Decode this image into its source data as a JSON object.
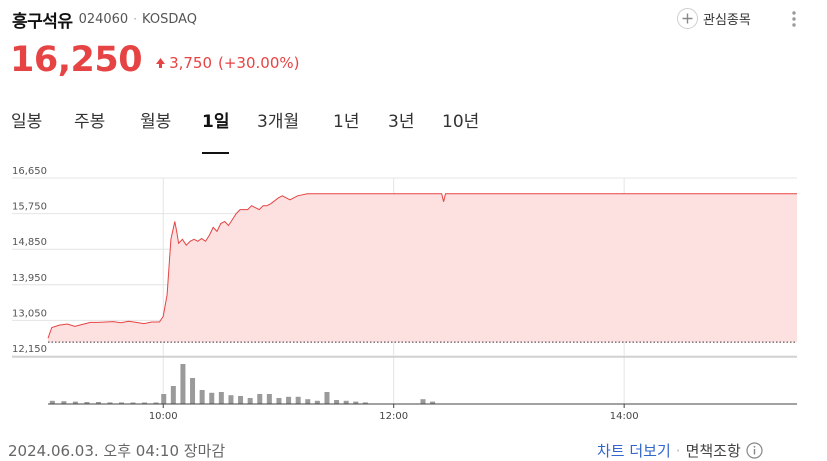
{
  "stock": {
    "name": "흥구석유",
    "code": "024060",
    "separator": "·",
    "market": "KOSDAQ"
  },
  "watchlist": {
    "label": "관심종목",
    "icon": "plus-icon"
  },
  "more_menu": {
    "icon": "more-vertical-icon"
  },
  "quote": {
    "price": "16,250",
    "change": "3,750",
    "change_pct": "(+30.00%)",
    "direction_icon": "triangle-up-icon",
    "color_up": "#e64444"
  },
  "tabs": [
    {
      "label": "일봉",
      "active": false
    },
    {
      "label": "주봉",
      "active": false
    },
    {
      "label": "월봉",
      "active": false
    },
    {
      "label": "1일",
      "active": true
    },
    {
      "label": "3개월",
      "active": false
    },
    {
      "label": "1년",
      "active": false
    },
    {
      "label": "3년",
      "active": false
    },
    {
      "label": "10년",
      "active": false
    }
  ],
  "chart_data": {
    "type": "area",
    "y_tick_labels": [
      "16,650",
      "15,750",
      "14,850",
      "13,950",
      "13,050",
      "12,150"
    ],
    "y_ticks": [
      16650,
      15750,
      14850,
      13950,
      13050,
      12150
    ],
    "ylim": [
      12150,
      16650
    ],
    "x_tick_labels": [
      "10:00",
      "12:00",
      "14:00"
    ],
    "x_ticks_min": [
      600,
      720,
      840
    ],
    "xlim_min": [
      540,
      930
    ],
    "grid": true,
    "reference_line": {
      "value": 12500,
      "style": "dotted"
    },
    "line_color": "#e64444",
    "fill_color": "#fde0e0",
    "price_series": [
      [
        540,
        12600
      ],
      [
        542,
        12870
      ],
      [
        546,
        12930
      ],
      [
        550,
        12960
      ],
      [
        554,
        12900
      ],
      [
        558,
        12950
      ],
      [
        562,
        13000
      ],
      [
        566,
        13000
      ],
      [
        570,
        13010
      ],
      [
        574,
        13020
      ],
      [
        578,
        12990
      ],
      [
        582,
        13030
      ],
      [
        586,
        13000
      ],
      [
        590,
        12970
      ],
      [
        594,
        13010
      ],
      [
        598,
        13010
      ],
      [
        600,
        13150
      ],
      [
        602,
        13700
      ],
      [
        604,
        15100
      ],
      [
        606,
        15550
      ],
      [
        607,
        15300
      ],
      [
        608,
        15000
      ],
      [
        610,
        15100
      ],
      [
        612,
        14950
      ],
      [
        614,
        15050
      ],
      [
        616,
        15100
      ],
      [
        618,
        15050
      ],
      [
        620,
        15120
      ],
      [
        622,
        15050
      ],
      [
        624,
        15200
      ],
      [
        626,
        15400
      ],
      [
        628,
        15300
      ],
      [
        630,
        15500
      ],
      [
        632,
        15550
      ],
      [
        634,
        15450
      ],
      [
        636,
        15600
      ],
      [
        638,
        15750
      ],
      [
        640,
        15850
      ],
      [
        644,
        15850
      ],
      [
        646,
        15950
      ],
      [
        648,
        15900
      ],
      [
        650,
        15850
      ],
      [
        652,
        15950
      ],
      [
        654,
        15950
      ],
      [
        656,
        16000
      ],
      [
        660,
        16150
      ],
      [
        662,
        16200
      ],
      [
        664,
        16150
      ],
      [
        666,
        16100
      ],
      [
        670,
        16200
      ],
      [
        675,
        16250
      ],
      [
        680,
        16250
      ],
      [
        700,
        16250
      ],
      [
        740,
        16250
      ],
      [
        745,
        16250
      ],
      [
        746,
        16050
      ],
      [
        747,
        16250
      ],
      [
        760,
        16250
      ],
      [
        800,
        16250
      ],
      [
        850,
        16250
      ],
      [
        900,
        16250
      ],
      [
        930,
        16250
      ]
    ],
    "volume_series": [
      [
        542,
        0.08
      ],
      [
        548,
        0.07
      ],
      [
        554,
        0.06
      ],
      [
        560,
        0.05
      ],
      [
        566,
        0.05
      ],
      [
        572,
        0.04
      ],
      [
        578,
        0.04
      ],
      [
        584,
        0.03
      ],
      [
        590,
        0.02
      ],
      [
        596,
        0.03
      ],
      [
        600,
        0.25
      ],
      [
        605,
        0.45
      ],
      [
        610,
        1.0
      ],
      [
        615,
        0.65
      ],
      [
        620,
        0.35
      ],
      [
        625,
        0.28
      ],
      [
        630,
        0.3
      ],
      [
        635,
        0.22
      ],
      [
        640,
        0.2
      ],
      [
        645,
        0.15
      ],
      [
        650,
        0.25
      ],
      [
        655,
        0.25
      ],
      [
        660,
        0.15
      ],
      [
        665,
        0.18
      ],
      [
        670,
        0.18
      ],
      [
        675,
        0.12
      ],
      [
        680,
        0.08
      ],
      [
        685,
        0.3
      ],
      [
        690,
        0.1
      ],
      [
        695,
        0.08
      ],
      [
        700,
        0.06
      ],
      [
        705,
        0.04
      ],
      [
        735,
        0.12
      ],
      [
        740,
        0.06
      ]
    ]
  },
  "footer": {
    "date": "2024.06.03. 오후 04:10 장마감",
    "more_chart": "차트 더보기",
    "separator": "·",
    "disclaimer": "면책조항",
    "info_icon": "info-icon"
  }
}
